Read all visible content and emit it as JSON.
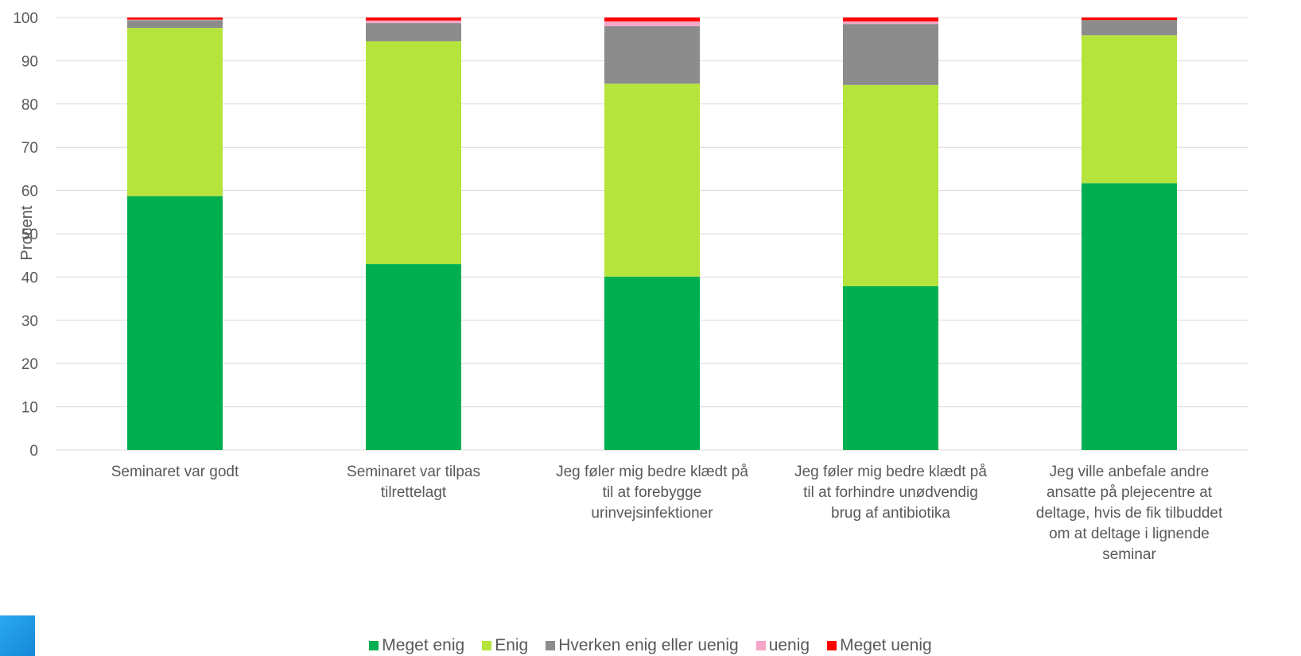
{
  "chart_data": {
    "type": "bar",
    "stacked": true,
    "ylabel": "Procent",
    "ylim": [
      0,
      100
    ],
    "yticks": [
      0,
      10,
      20,
      30,
      40,
      50,
      60,
      70,
      80,
      90,
      100
    ],
    "grid": true,
    "legend_position": "bottom",
    "categories": [
      "Seminaret var godt",
      "Seminaret var tilpas tilrettelagt",
      "Jeg føler mig bedre klædt på til at forebygge urinvejsinfektioner",
      "Jeg føler mig bedre klædt på til at forhindre unødvendig brug af antibiotika",
      "Jeg ville anbefale andre ansatte på plejecentre at deltage, hvis de fik tilbuddet om at deltage i lignende seminar"
    ],
    "category_lines": [
      [
        "Seminaret var godt"
      ],
      [
        "Seminaret var tilpas",
        "tilrettelagt"
      ],
      [
        "Jeg føler mig bedre klædt på",
        "til at forebygge",
        "urinvejsinfektioner"
      ],
      [
        "Jeg føler mig bedre klædt på",
        "til at forhindre unødvendig",
        "brug af antibiotika"
      ],
      [
        "Jeg ville anbefale andre",
        "ansatte på plejecentre at",
        "deltage, hvis de fik tilbuddet",
        "om at deltage i lignende",
        "seminar"
      ]
    ],
    "series": [
      {
        "name": "Meget enig",
        "color": "#00b050",
        "values": [
          58.7,
          43.0,
          40.1,
          37.9,
          61.7
        ]
      },
      {
        "name": "Enig",
        "color": "#b5e43c",
        "values": [
          38.9,
          51.5,
          44.6,
          46.5,
          34.2
        ]
      },
      {
        "name": "Hverken enig eller uenig",
        "color": "#8c8c8c",
        "values": [
          1.8,
          4.2,
          13.3,
          14.1,
          3.5
        ]
      },
      {
        "name": "uenig",
        "color": "#f4a6c8",
        "values": [
          0.1,
          0.6,
          1.1,
          0.6,
          0.0
        ]
      },
      {
        "name": "Meget uenig",
        "color": "#ff0000",
        "values": [
          0.5,
          0.7,
          0.9,
          0.9,
          0.6
        ]
      }
    ]
  }
}
